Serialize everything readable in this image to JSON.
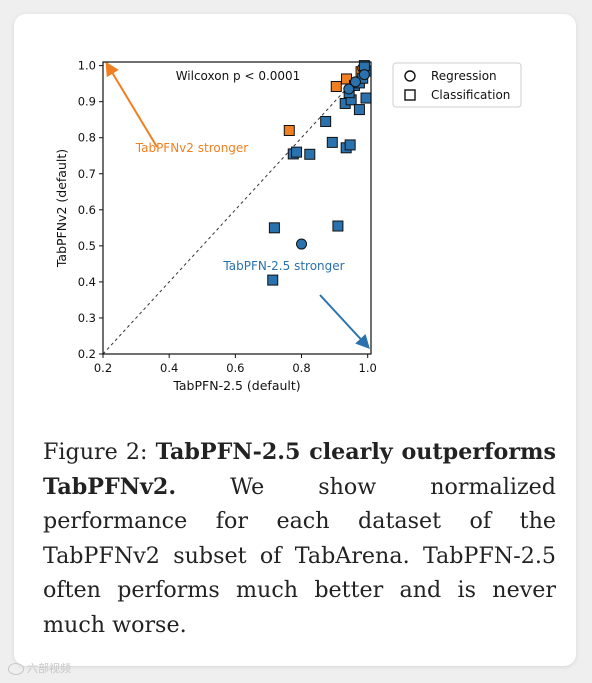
{
  "chart_data": {
    "type": "scatter",
    "xlabel": "TabPFN-2.5 (default)",
    "ylabel": "TabPFNv2 (default)",
    "xlim": [
      0.2,
      1.01
    ],
    "ylim": [
      0.2,
      1.01
    ],
    "xticks": [
      "0.2",
      "0.4",
      "0.6",
      "0.8",
      "1.0"
    ],
    "yticks": [
      "0.2",
      "0.3",
      "0.4",
      "0.5",
      "0.6",
      "0.7",
      "0.8",
      "0.9",
      "1.0"
    ],
    "diagonal": true,
    "grid": false,
    "legend": {
      "placement": "outside-right",
      "entries": [
        {
          "label": "Regression",
          "marker": "circle"
        },
        {
          "label": "Classification",
          "marker": "square"
        }
      ]
    },
    "annotations": {
      "stat": "Wilcoxon p < 0.0001",
      "upper": "TabPFNv2 stronger",
      "lower": "TabPFN-2.5 stronger"
    },
    "colors": {
      "v2_stronger": "#f07f21",
      "v25_stronger": "#2a72ad",
      "edge": "#111111"
    },
    "series": [
      {
        "color_key": "v2_stronger",
        "marker": "square",
        "points": [
          [
            0.763,
            0.82
          ],
          [
            0.905,
            0.942
          ],
          [
            0.936,
            0.963
          ],
          [
            0.98,
            0.983
          ]
        ]
      },
      {
        "color_key": "v2_stronger",
        "marker": "circle",
        "points": [
          [
            0.985,
            0.993
          ]
        ]
      },
      {
        "color_key": "v25_stronger",
        "marker": "square",
        "points": [
          [
            0.713,
            0.405
          ],
          [
            0.718,
            0.55
          ],
          [
            0.775,
            0.755
          ],
          [
            0.785,
            0.76
          ],
          [
            0.825,
            0.754
          ],
          [
            0.873,
            0.845
          ],
          [
            0.893,
            0.787
          ],
          [
            0.91,
            0.555
          ],
          [
            0.935,
            0.772
          ],
          [
            0.947,
            0.78
          ],
          [
            0.932,
            0.895
          ],
          [
            0.95,
            0.905
          ],
          [
            0.944,
            0.925
          ],
          [
            0.96,
            0.945
          ],
          [
            0.975,
            0.952
          ],
          [
            0.975,
            0.878
          ],
          [
            0.995,
            0.91
          ],
          [
            0.985,
            0.965
          ],
          [
            0.995,
            0.985
          ],
          [
            0.99,
            1.0
          ]
        ]
      },
      {
        "color_key": "v25_stronger",
        "marker": "circle",
        "points": [
          [
            0.8,
            0.505
          ],
          [
            0.943,
            0.935
          ],
          [
            0.963,
            0.955
          ],
          [
            0.99,
            0.975
          ]
        ]
      }
    ]
  },
  "caption": {
    "label": "Figure 2:",
    "bold": "TabPFN-2.5 clearly outperforms TabPFNv2.",
    "text": "We show normalized performance for each dataset of the TabPFNv2 subset of TabArena. TabPFN-2.5 often performs much better and is never much worse."
  },
  "watermark": "六部视频"
}
